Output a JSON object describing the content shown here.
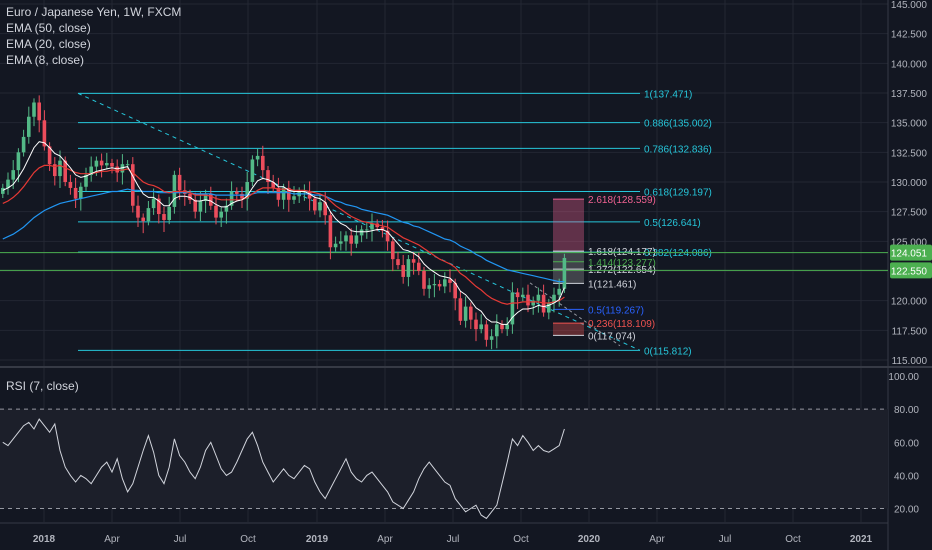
{
  "legend": {
    "title": "Euro / Japanese Yen, 1W, FXCM",
    "ema50": "EMA (50, close)",
    "ema20": "EMA (20, close)",
    "ema8": "EMA (8, close)",
    "rsi": "RSI (7, close)"
  },
  "colors": {
    "background": "#131722",
    "grid": "#232733",
    "up": "#53b987",
    "down": "#eb4d5c",
    "fib_main": "#26c6da",
    "fib_ext": "#ffffff",
    "ema50": "#2196f3",
    "ema20": "#e53935",
    "ema8": "#ffffff",
    "rsi_line": "#d1d4dc",
    "price_line": "#4caf50",
    "price_badge_blue": "#2196f3",
    "price_badge_green": "#4caf50"
  },
  "chart_data": {
    "type": "candlestick",
    "title": "Euro / Japanese Yen, 1W, FXCM",
    "price_axis": {
      "ticks": [
        "145.000",
        "142.500",
        "140.000",
        "137.500",
        "135.000",
        "132.500",
        "130.000",
        "127.500",
        "125.000",
        "122.500",
        "120.000",
        "117.500",
        "115.000"
      ],
      "range": [
        114.2,
        145.0
      ]
    },
    "rsi_axis": {
      "ticks": [
        "100.00",
        "80.00",
        "60.00",
        "40.00",
        "20.00"
      ],
      "range": [
        10,
        100
      ],
      "levels": [
        80,
        20
      ]
    },
    "time_axis": [
      "2018",
      "Apr",
      "Jul",
      "Oct",
      "2019",
      "Apr",
      "Jul",
      "Oct",
      "2020",
      "Apr",
      "Jul",
      "Oct",
      "2021"
    ],
    "price_badges": [
      "124.051",
      "122.550"
    ],
    "fib_retracement": [
      {
        "label": "1(137.471)",
        "value": 137.471
      },
      {
        "label": "0.886(135.002)",
        "value": 135.002
      },
      {
        "label": "0.786(132.836)",
        "value": 132.836
      },
      {
        "label": "0.618(129.197)",
        "value": 129.197
      },
      {
        "label": "0.5(126.641)",
        "value": 126.641
      },
      {
        "label": "0.382(124.086)",
        "value": 124.086
      },
      {
        "label": "0(115.812)",
        "value": 115.812
      }
    ],
    "fib_extension": [
      {
        "label": "2.618(128.559)",
        "value": 128.559,
        "color": "#f06292"
      },
      {
        "label": "1.618(124.177)",
        "value": 124.177,
        "color": "#d1d4dc"
      },
      {
        "label": "1.414(123.277)",
        "value": 123.277,
        "color": "#4caf50"
      },
      {
        "label": "1.272(122.654)",
        "value": 122.654,
        "color": "#d1d4dc"
      },
      {
        "label": "1(121.461)",
        "value": 121.461,
        "color": "#d1d4dc"
      },
      {
        "label": "0.5(119.267)",
        "value": 119.267,
        "color": "#2962ff"
      },
      {
        "label": "0.236(118.109)",
        "value": 118.109,
        "color": "#ef5350"
      },
      {
        "label": "0(117.074)",
        "value": 117.074,
        "color": "#d1d4dc"
      }
    ],
    "close": [
      129.5,
      130.2,
      131.0,
      132.5,
      133.8,
      135.5,
      136.7,
      135.2,
      133.0,
      131.5,
      130.5,
      131.8,
      130.0,
      129.5,
      128.6,
      129.6,
      130.6,
      131.3,
      131.8,
      131.4,
      131.6,
      131.3,
      130.8,
      131.5,
      131.5,
      128.0,
      127.0,
      126.7,
      127.8,
      128.6,
      127.3,
      126.8,
      127.9,
      130.6,
      129.3,
      129.0,
      128.5,
      127.5,
      128.4,
      129.0,
      128.0,
      127.0,
      127.5,
      128.0,
      129.2,
      129.0,
      128.6,
      130.0,
      131.9,
      132.2,
      131.0,
      130.0,
      129.5,
      128.5,
      129.5,
      128.5,
      128.8,
      129.2,
      129.2,
      128.6,
      127.6,
      128.3,
      127.2,
      124.5,
      124.8,
      125.0,
      125.5,
      124.8,
      125.5,
      126.0,
      126.0,
      126.5,
      126.2,
      125.9,
      125.0,
      123.5,
      123.0,
      122.0,
      123.5,
      123.2,
      122.5,
      121.0,
      121.3,
      121.4,
      121.2,
      121.8,
      121.5,
      120.2,
      118.3,
      119.5,
      118.4,
      117.6,
      118.0,
      116.7,
      117.0,
      118.0,
      117.6,
      118.0,
      120.7,
      120.3,
      120.5,
      119.6,
      120.0,
      120.5,
      119.0,
      119.8,
      120.5,
      121.0,
      123.6
    ],
    "ema50": [
      125.2,
      125.4,
      125.6,
      125.9,
      126.2,
      126.6,
      127.0,
      127.3,
      127.6,
      127.8,
      128.0,
      128.2,
      128.3,
      128.4,
      128.5,
      128.6,
      128.7,
      128.8,
      128.9,
      129.0,
      129.1,
      129.2,
      129.2,
      129.3,
      129.4,
      129.3,
      129.3,
      129.2,
      129.2,
      129.2,
      129.1,
      129.1,
      129.1,
      129.1,
      129.1,
      129.1,
      129.1,
      129.0,
      129.0,
      129.0,
      129.0,
      128.9,
      128.9,
      128.9,
      128.9,
      128.9,
      128.9,
      128.9,
      129.0,
      129.1,
      129.1,
      129.1,
      129.1,
      129.1,
      129.1,
      129.1,
      129.0,
      129.0,
      129.0,
      129.0,
      128.9,
      128.9,
      128.8,
      128.6,
      128.4,
      128.3,
      128.1,
      128.0,
      127.9,
      127.7,
      127.6,
      127.5,
      127.4,
      127.3,
      127.2,
      127.0,
      126.8,
      126.6,
      126.5,
      126.3,
      126.2,
      126.0,
      125.8,
      125.6,
      125.4,
      125.2,
      125.1,
      124.9,
      124.6,
      124.4,
      124.2,
      123.9,
      123.7,
      123.4,
      123.2,
      123.0,
      122.8,
      122.6,
      122.5,
      122.4,
      122.3,
      122.2,
      122.1,
      122.0,
      121.9,
      121.8,
      121.7,
      121.6,
      121.6
    ],
    "ema20": [
      128.2,
      128.4,
      128.7,
      129.1,
      129.6,
      130.2,
      130.8,
      131.2,
      131.4,
      131.4,
      131.3,
      131.4,
      131.2,
      131.0,
      130.8,
      130.7,
      130.7,
      130.7,
      130.8,
      130.9,
      130.9,
      131.0,
      131.0,
      131.0,
      131.1,
      130.8,
      130.4,
      130.0,
      129.8,
      129.7,
      129.5,
      129.2,
      129.1,
      129.2,
      129.2,
      129.2,
      129.1,
      128.9,
      128.9,
      128.9,
      128.8,
      128.6,
      128.5,
      128.5,
      128.5,
      128.5,
      128.5,
      128.7,
      129.0,
      129.3,
      129.5,
      129.5,
      129.5,
      129.4,
      129.4,
      129.4,
      129.3,
      129.3,
      129.3,
      129.2,
      129.1,
      129.0,
      128.8,
      128.4,
      128.0,
      127.7,
      127.4,
      127.1,
      126.9,
      126.7,
      126.6,
      126.5,
      126.4,
      126.3,
      126.2,
      125.9,
      125.6,
      125.3,
      125.1,
      124.9,
      124.7,
      124.4,
      124.1,
      123.8,
      123.5,
      123.3,
      123.1,
      122.8,
      122.3,
      122.0,
      121.6,
      121.2,
      120.9,
      120.5,
      120.2,
      120.0,
      119.8,
      119.7,
      119.8,
      119.8,
      119.9,
      119.9,
      119.9,
      119.9,
      119.8,
      119.8,
      119.9,
      120.0,
      120.3
    ],
    "ema8": [
      129.3,
      129.5,
      129.8,
      130.4,
      131.1,
      132.0,
      132.9,
      133.4,
      133.3,
      132.9,
      132.4,
      132.2,
      131.7,
      131.2,
      130.6,
      130.4,
      130.5,
      130.7,
      130.9,
      131.0,
      131.1,
      131.2,
      131.1,
      131.2,
      131.3,
      130.5,
      129.7,
      129.0,
      128.7,
      128.7,
      128.4,
      128.0,
      128.0,
      128.6,
      128.8,
      128.8,
      128.7,
      128.4,
      128.4,
      128.5,
      128.4,
      128.1,
      127.9,
      127.9,
      128.2,
      128.4,
      128.5,
      128.8,
      129.5,
      130.1,
      130.3,
      130.2,
      130.0,
      129.6,
      129.6,
      129.3,
      129.2,
      129.2,
      129.2,
      129.0,
      128.7,
      128.6,
      128.3,
      127.5,
      126.9,
      126.5,
      126.3,
      125.9,
      125.8,
      125.8,
      125.8,
      125.9,
      126.0,
      126.0,
      125.8,
      125.3,
      124.8,
      124.3,
      124.2,
      124.0,
      123.7,
      123.1,
      122.7,
      122.4,
      122.1,
      122.0,
      121.9,
      121.5,
      120.8,
      120.5,
      120.0,
      119.4,
      119.1,
      118.5,
      118.2,
      118.2,
      118.0,
      118.0,
      118.6,
      119.0,
      119.3,
      119.3,
      119.4,
      119.6,
      119.5,
      119.6,
      119.8,
      120.1,
      121.1
    ],
    "rsi": [
      60,
      58,
      62,
      66,
      70,
      72,
      68,
      74,
      70,
      66,
      71,
      55,
      45,
      40,
      36,
      40,
      38,
      35,
      40,
      45,
      48,
      42,
      50,
      38,
      30,
      35,
      45,
      55,
      64,
      54,
      40,
      35,
      45,
      62,
      52,
      48,
      42,
      38,
      45,
      55,
      60,
      52,
      44,
      40,
      42,
      48,
      55,
      62,
      66,
      58,
      48,
      42,
      36,
      40,
      44,
      40,
      38,
      42,
      46,
      44,
      36,
      30,
      26,
      32,
      38,
      44,
      50,
      42,
      38,
      36,
      40,
      42,
      38,
      34,
      30,
      24,
      22,
      20,
      25,
      30,
      38,
      44,
      48,
      44,
      40,
      36,
      34,
      26,
      22,
      18,
      20,
      22,
      16,
      14,
      18,
      22,
      35,
      48,
      62,
      58,
      64,
      60,
      55,
      58,
      55,
      54,
      56,
      58,
      68
    ],
    "open_first": 129.0
  }
}
